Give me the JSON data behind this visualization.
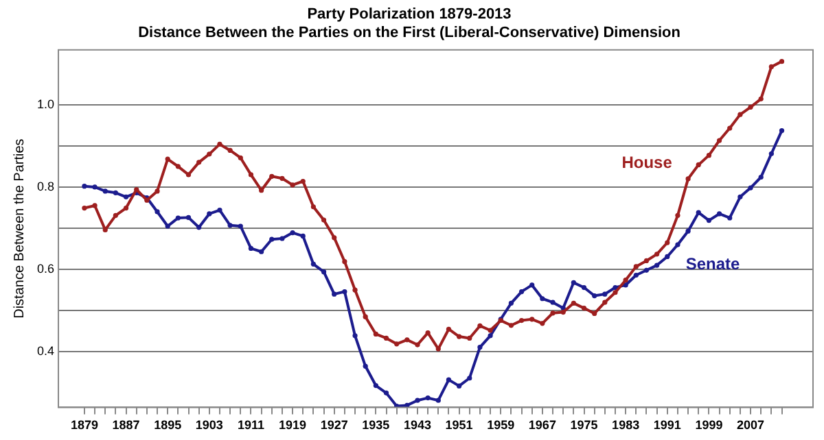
{
  "chart_data": {
    "type": "line",
    "title": "Party Polarization 1879-2013",
    "subtitle": "Distance Between the Parties on the First (Liberal-Conservative) Dimension",
    "ylabel": "Distance Between the Parties",
    "x": [
      1879,
      1881,
      1883,
      1885,
      1887,
      1889,
      1891,
      1893,
      1895,
      1897,
      1899,
      1901,
      1903,
      1905,
      1907,
      1909,
      1911,
      1913,
      1915,
      1917,
      1919,
      1921,
      1923,
      1925,
      1927,
      1929,
      1931,
      1933,
      1935,
      1937,
      1939,
      1941,
      1943,
      1945,
      1947,
      1949,
      1951,
      1953,
      1955,
      1957,
      1959,
      1961,
      1963,
      1965,
      1967,
      1969,
      1971,
      1973,
      1975,
      1977,
      1979,
      1981,
      1983,
      1985,
      1987,
      1989,
      1991,
      1993,
      1995,
      1997,
      1999,
      2001,
      2003,
      2005,
      2007,
      2009,
      2011,
      2013
    ],
    "series": [
      {
        "name": "House",
        "color": "#9e1f1f",
        "values": [
          0.749,
          0.755,
          0.696,
          0.731,
          0.749,
          0.794,
          0.768,
          0.79,
          0.868,
          0.85,
          0.83,
          0.86,
          0.88,
          0.904,
          0.889,
          0.871,
          0.83,
          0.792,
          0.826,
          0.821,
          0.805,
          0.814,
          0.752,
          0.72,
          0.677,
          0.619,
          0.55,
          0.485,
          0.443,
          0.433,
          0.419,
          0.429,
          0.417,
          0.446,
          0.407,
          0.455,
          0.437,
          0.433,
          0.463,
          0.452,
          0.476,
          0.464,
          0.476,
          0.479,
          0.469,
          0.494,
          0.496,
          0.518,
          0.506,
          0.493,
          0.52,
          0.544,
          0.574,
          0.607,
          0.621,
          0.637,
          0.665,
          0.731,
          0.82,
          0.854,
          0.877,
          0.913,
          0.943,
          0.976,
          0.994,
          1.014,
          1.092,
          1.105
        ]
      },
      {
        "name": "Senate",
        "color": "#1c1c8e",
        "values": [
          0.802,
          0.8,
          0.79,
          0.786,
          0.776,
          0.786,
          0.774,
          0.74,
          0.705,
          0.725,
          0.726,
          0.702,
          0.735,
          0.744,
          0.707,
          0.705,
          0.651,
          0.643,
          0.673,
          0.675,
          0.689,
          0.681,
          0.613,
          0.594,
          0.54,
          0.546,
          0.439,
          0.365,
          0.318,
          0.3,
          0.268,
          0.27,
          0.282,
          0.288,
          0.282,
          0.332,
          0.317,
          0.336,
          0.411,
          0.439,
          0.479,
          0.518,
          0.546,
          0.562,
          0.529,
          0.52,
          0.506,
          0.568,
          0.556,
          0.536,
          0.54,
          0.556,
          0.562,
          0.586,
          0.598,
          0.61,
          0.631,
          0.66,
          0.693,
          0.738,
          0.719,
          0.735,
          0.725,
          0.776,
          0.798,
          0.824,
          0.881,
          0.937
        ]
      }
    ],
    "xlim": [
      1874,
      2019
    ],
    "xticks": [
      1879,
      {
        "value": 1881,
        "label": null
      },
      {
        "value": 1883,
        "label": null
      },
      {
        "value": 1885,
        "label": null
      },
      1887,
      {
        "value": 1889,
        "label": null
      },
      {
        "value": 1891,
        "label": null
      },
      {
        "value": 1893,
        "label": null
      },
      1895,
      {
        "value": 1897,
        "label": null
      },
      {
        "value": 1899,
        "label": null
      },
      {
        "value": 1901,
        "label": null
      },
      1903,
      {
        "value": 1905,
        "label": null
      },
      {
        "value": 1907,
        "label": null
      },
      {
        "value": 1909,
        "label": null
      },
      1911,
      {
        "value": 1913,
        "label": null
      },
      {
        "value": 1915,
        "label": null
      },
      {
        "value": 1917,
        "label": null
      },
      1919,
      {
        "value": 1921,
        "label": null
      },
      {
        "value": 1923,
        "label": null
      },
      {
        "value": 1925,
        "label": null
      },
      1927,
      {
        "value": 1929,
        "label": null
      },
      {
        "value": 1931,
        "label": null
      },
      {
        "value": 1933,
        "label": null
      },
      1935,
      {
        "value": 1937,
        "label": null
      },
      {
        "value": 1939,
        "label": null
      },
      {
        "value": 1941,
        "label": null
      },
      1943,
      {
        "value": 1945,
        "label": null
      },
      {
        "value": 1947,
        "label": null
      },
      {
        "value": 1949,
        "label": null
      },
      1951,
      {
        "value": 1953,
        "label": null
      },
      {
        "value": 1955,
        "label": null
      },
      {
        "value": 1957,
        "label": null
      },
      1959,
      {
        "value": 1961,
        "label": null
      },
      {
        "value": 1963,
        "label": null
      },
      {
        "value": 1965,
        "label": null
      },
      1967,
      {
        "value": 1969,
        "label": null
      },
      {
        "value": 1971,
        "label": null
      },
      {
        "value": 1973,
        "label": null
      },
      1975,
      {
        "value": 1977,
        "label": null
      },
      {
        "value": 1979,
        "label": null
      },
      {
        "value": 1981,
        "label": null
      },
      1983,
      {
        "value": 1985,
        "label": null
      },
      {
        "value": 1987,
        "label": null
      },
      {
        "value": 1989,
        "label": null
      },
      1991,
      {
        "value": 1993,
        "label": null
      },
      {
        "value": 1995,
        "label": null
      },
      {
        "value": 1997,
        "label": null
      },
      1999,
      {
        "value": 2001,
        "label": null
      },
      {
        "value": 2003,
        "label": null
      },
      {
        "value": 2005,
        "label": null
      },
      2007,
      {
        "value": 2009,
        "label": null
      },
      {
        "value": 2011,
        "label": null
      },
      {
        "value": 2013,
        "label": null
      }
    ],
    "ylim": [
      0.265,
      1.133
    ],
    "yticks": [
      0.4,
      {
        "value": 0.5,
        "label": null
      },
      0.6,
      {
        "value": 0.7,
        "label": null
      },
      0.8,
      {
        "value": 0.9,
        "label": null
      },
      {
        "value": 1.0,
        "label": "1.0"
      }
    ],
    "grid": "y",
    "legend": false,
    "marker": "circle",
    "line_style": "solid"
  }
}
